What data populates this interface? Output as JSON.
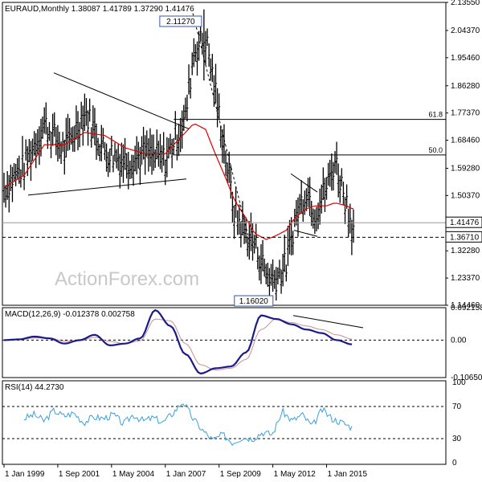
{
  "chart_data": [
    {
      "type": "candlestick",
      "panel": "price",
      "title": "EURAUD,Monthly 1.38087 1.41789 1.37290 1.41476",
      "ylim": [
        1.1446,
        2.1355
      ],
      "y_ticks": [
        "2.13550",
        "2.04370",
        "1.95460",
        "1.86280",
        "1.77370",
        "1.68460",
        "1.59280",
        "1.50370",
        "1.41476",
        "1.36710",
        "1.32280",
        "1.23370",
        "1.14460"
      ],
      "x_ticks": [
        "1 Jan 1999",
        "1 Sep 2001",
        "1 May 2004",
        "1 Jan 2007",
        "1 Sep 2009",
        "1 May 2012",
        "1 Jan 2015"
      ],
      "annotations": {
        "high_label": "2.11270",
        "low_label": "1.16020",
        "fib_618": "61.8",
        "fib_500": "50.0",
        "last_price": "1.41476",
        "support": "1.36710"
      },
      "levels": {
        "fib_618": 1.7527,
        "fib_500": 1.6364,
        "last_price": 1.41476,
        "support": 1.3671
      },
      "watermark": "ActionForex.com",
      "x": [
        "1999-01",
        "2000-01",
        "2001-01",
        "2002-01",
        "2003-01",
        "2004-01",
        "2005-01",
        "2006-01",
        "2007-01",
        "2007-06",
        "2008-01",
        "2008-06",
        "2009-01",
        "2009-06",
        "2010-01",
        "2010-06",
        "2011-01",
        "2011-06",
        "2012-01",
        "2012-06",
        "2013-01",
        "2013-06",
        "2014-01",
        "2014-06",
        "2015-01",
        "2015-06",
        "2016-01",
        "2016-04"
      ],
      "close": [
        1.53,
        1.6,
        1.74,
        1.65,
        1.78,
        1.65,
        1.62,
        1.64,
        1.62,
        1.68,
        1.76,
        1.98,
        2.02,
        1.87,
        1.63,
        1.45,
        1.38,
        1.35,
        1.25,
        1.23,
        1.28,
        1.42,
        1.53,
        1.45,
        1.53,
        1.62,
        1.48,
        1.41
      ],
      "ma": [
        1.53,
        1.57,
        1.67,
        1.67,
        1.71,
        1.7,
        1.66,
        1.64,
        1.64,
        1.67,
        1.71,
        1.74,
        1.72,
        1.65,
        1.56,
        1.49,
        1.43,
        1.38,
        1.36,
        1.37,
        1.39,
        1.43,
        1.46,
        1.47,
        1.47,
        1.48,
        1.47,
        1.46
      ],
      "highs_of_note": {
        "2008-12": 2.1127,
        "2012-07": 1.1602
      }
    },
    {
      "type": "line",
      "panel": "macd",
      "title": "MACD(12,26,9) -0.012378 0.002758",
      "ylim": [
        -0.1065,
        0.092158
      ],
      "y_ticks": [
        "0.092158",
        "0.00",
        "-0.106503"
      ],
      "series": [
        {
          "name": "MACD",
          "values": [
            0.0,
            0.002,
            0.01,
            0.005,
            -0.01,
            0.0,
            0.015,
            -0.015,
            -0.01,
            0.005,
            0.085,
            0.04,
            -0.04,
            -0.095,
            -0.08,
            -0.075,
            -0.035,
            0.07,
            0.06,
            0.045,
            0.03,
            0.02,
            0.0,
            -0.012
          ]
        },
        {
          "name": "Signal",
          "values": [
            0.0,
            0.001,
            0.006,
            0.006,
            -0.003,
            -0.002,
            0.008,
            -0.004,
            -0.01,
            -0.002,
            0.06,
            0.055,
            -0.01,
            -0.07,
            -0.085,
            -0.08,
            -0.055,
            0.03,
            0.06,
            0.05,
            0.04,
            0.03,
            0.015,
            0.003
          ]
        }
      ]
    },
    {
      "type": "line",
      "panel": "rsi",
      "title": "RSI(14) 44.2730",
      "ylim": [
        0,
        100
      ],
      "y_ticks": [
        "100",
        "70",
        "30",
        "0"
      ],
      "levels": [
        70,
        30
      ],
      "series": [
        {
          "name": "RSI",
          "values": [
            55,
            60,
            52,
            65,
            58,
            62,
            50,
            57,
            55,
            60,
            48,
            60,
            52,
            56,
            50,
            62,
            76,
            55,
            40,
            28,
            35,
            25,
            32,
            30,
            38,
            35,
            64,
            52,
            60,
            45,
            66,
            55,
            50,
            44
          ]
        }
      ]
    }
  ]
}
